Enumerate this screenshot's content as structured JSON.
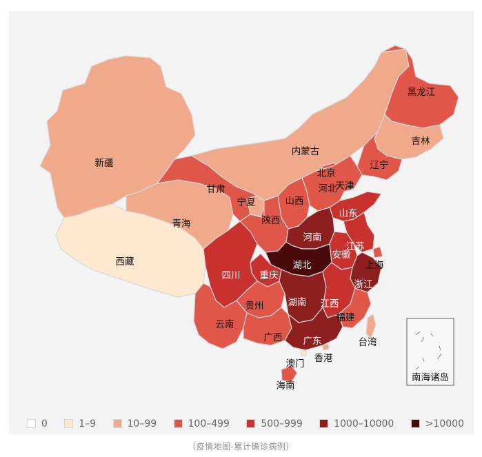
{
  "caption": "（疫情地图-累计确诊病例）",
  "colors": {
    "c0": "#ffffff",
    "c1": "#fde9cf",
    "c2": "#f0a98a",
    "c3": "#e0574a",
    "c4": "#c9312f",
    "c5": "#8d1f1e",
    "c6": "#4a0a0b"
  },
  "legend": [
    {
      "label": "0",
      "color": "#ffffff"
    },
    {
      "label": "1–9",
      "color": "#fde9cf"
    },
    {
      "label": "10–99",
      "color": "#f0a98a"
    },
    {
      "label": "100–499",
      "color": "#e0574a"
    },
    {
      "label": "500–999",
      "color": "#c9312f"
    },
    {
      "label": "1000–10000",
      "color": "#8d1f1e"
    },
    {
      "label": ">10000",
      "color": "#4a0a0b"
    }
  ],
  "provinces": {
    "heilongjiang": {
      "name": "黑龙江",
      "class": "100–499"
    },
    "jilin": {
      "name": "吉林",
      "class": "10–99"
    },
    "liaoning": {
      "name": "辽宁",
      "class": "100–499"
    },
    "neimenggu": {
      "name": "内蒙古",
      "class": "10–99"
    },
    "xinjiang": {
      "name": "新疆",
      "class": "10–99"
    },
    "xizang": {
      "name": "西藏",
      "class": "1–9"
    },
    "qinghai": {
      "name": "青海",
      "class": "10–99"
    },
    "gansu": {
      "name": "甘肃",
      "class": "100–499"
    },
    "ningxia": {
      "name": "宁夏",
      "class": "10–99"
    },
    "shaanxi": {
      "name": "陕西",
      "class": "100–499"
    },
    "shanxi": {
      "name": "山西",
      "class": "100–499"
    },
    "beijing": {
      "name": "北京",
      "class": "100–499"
    },
    "tianjin": {
      "name": "天津",
      "class": "100–499"
    },
    "hebei": {
      "name": "河北",
      "class": "100–499"
    },
    "shandong": {
      "name": "山东",
      "class": "500–999"
    },
    "henan": {
      "name": "河南",
      "class": "1000–10000"
    },
    "jiangsu": {
      "name": "江苏",
      "class": "500–999"
    },
    "anhui": {
      "name": "安徽",
      "class": "500–999"
    },
    "shanghai": {
      "name": "上海",
      "class": "100–499"
    },
    "zhejiang": {
      "name": "浙江",
      "class": "1000–10000"
    },
    "hubei": {
      "name": "湖北",
      "class": ">10000"
    },
    "sichuan": {
      "name": "四川",
      "class": "500–999"
    },
    "chongqing": {
      "name": "重庆",
      "class": "500–999"
    },
    "hunan": {
      "name": "湖南",
      "class": "1000–10000"
    },
    "jiangxi": {
      "name": "江西",
      "class": "500–999"
    },
    "guizhou": {
      "name": "贵州",
      "class": "100–499"
    },
    "yunnan": {
      "name": "云南",
      "class": "100–499"
    },
    "guangxi": {
      "name": "广西",
      "class": "100–499"
    },
    "guangdong": {
      "name": "广东",
      "class": "1000–10000"
    },
    "fujian": {
      "name": "福建",
      "class": "100–499"
    },
    "taiwan": {
      "name": "台湾",
      "class": "10–99"
    },
    "hainan": {
      "name": "海南",
      "class": "100–499"
    },
    "hongkong": {
      "name": "香港",
      "class": "10–99"
    },
    "macau": {
      "name": "澳门",
      "class": "1–9"
    }
  },
  "inset": {
    "label": "南海诸岛"
  }
}
